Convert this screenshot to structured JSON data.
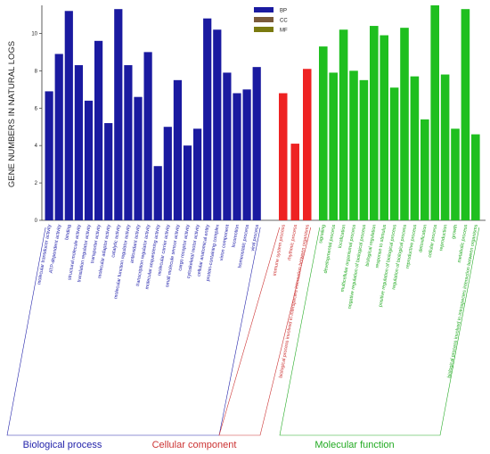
{
  "chart_data": {
    "type": "bar",
    "title": "",
    "xlabel": "",
    "ylabel": "GENE NUMBERS IN NATURAL LOGS",
    "ylim": [
      0,
      11.5
    ],
    "yticks": [
      "0",
      "2",
      "4",
      "6",
      "8",
      "10"
    ],
    "legend": {
      "placement": "top-right",
      "entries": [
        {
          "name": "BP",
          "color": "#1a1aa0"
        },
        {
          "name": "CC",
          "color": "#7a5a3a"
        },
        {
          "name": "MF",
          "color": "#7a7a10"
        }
      ]
    },
    "groups": [
      {
        "name": "Biological process",
        "color": "#1a1aa0",
        "label_color": "#2222aa"
      },
      {
        "name": "Cellular component",
        "color": "#ee2222",
        "label_color": "#cc3333"
      },
      {
        "name": "Molecular function",
        "color": "#1fbf1f",
        "label_color": "#22aa22"
      }
    ],
    "series": [
      {
        "group": "Biological process",
        "categories": [
          "molecular transducer activity",
          "ATP-dependent activity",
          "binding",
          "structural molecule activity",
          "translation regulator activity",
          "transporter activity",
          "molecular adaptor activity",
          "catalytic activity",
          "molecular function regulator activity",
          "antioxidant activity",
          "transcription regulator activity",
          "molecular sequestering activity",
          "molecular carrier activity",
          "small molecule sensor activity",
          "cargo receptor activity",
          "cytoskeletal motor activity",
          "cellular anatomical entity",
          "protein-containing complex",
          "virion component",
          "locomotion",
          "homeostatic process",
          "viral process"
        ],
        "values": [
          6.9,
          8.9,
          11.2,
          8.3,
          6.4,
          9.6,
          5.2,
          11.3,
          8.3,
          6.6,
          9.0,
          2.9,
          5.0,
          7.5,
          4.0,
          4.9,
          10.8,
          10.2,
          7.9,
          6.8,
          7.0,
          8.2
        ]
      },
      {
        "group": "Cellular component",
        "categories": [
          "immune system process",
          "rhythmic process",
          "biological process involved in interspecies interaction between organisms"
        ],
        "values": [
          6.8,
          4.1,
          8.1
        ]
      },
      {
        "group": "Molecular function",
        "categories": [
          "signaling",
          "developmental process",
          "localization",
          "multicellular organismal process",
          "negative regulation of biological process",
          "biological regulation",
          "response to stimulus",
          "positive regulation of biological process",
          "regulation of biological process",
          "reproductive process",
          "detoxification",
          "cellular process",
          "reproduction",
          "growth",
          "metabolic process",
          "biological process involved in intraspecies interaction between organisms"
        ],
        "values": [
          9.3,
          7.9,
          10.2,
          8.0,
          7.5,
          10.4,
          9.9,
          7.1,
          10.3,
          7.7,
          5.4,
          11.5,
          7.8,
          4.9,
          11.3,
          4.6
        ]
      }
    ]
  }
}
